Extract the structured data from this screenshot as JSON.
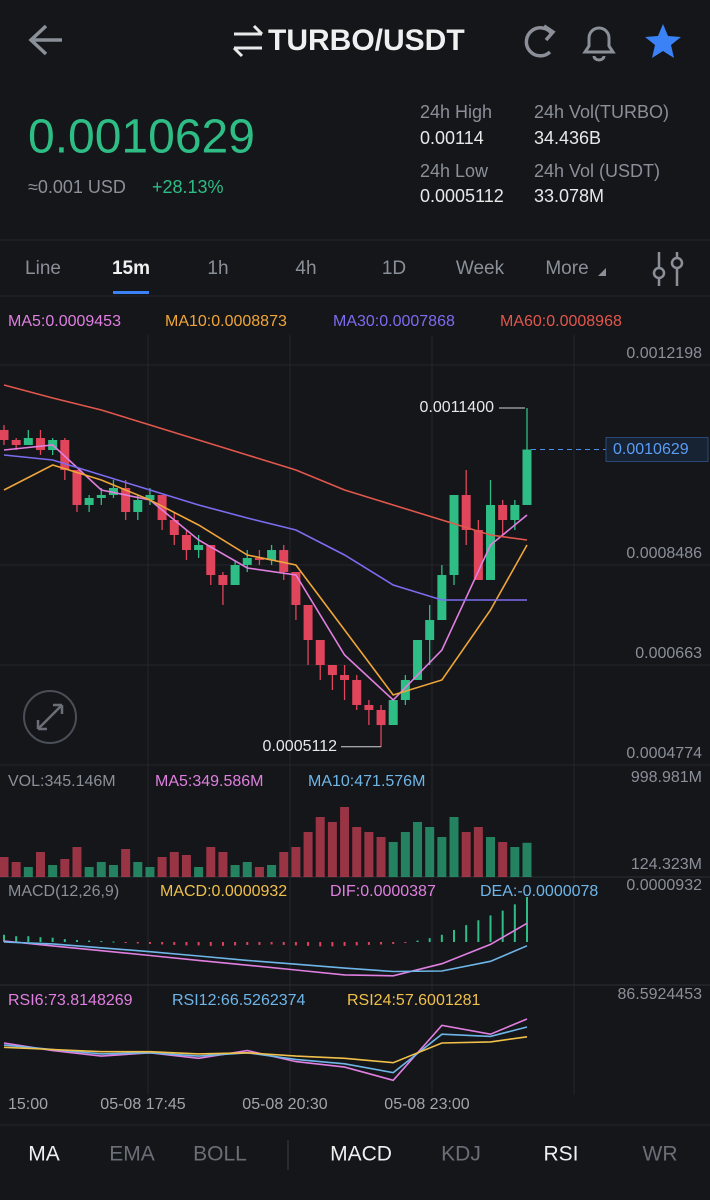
{
  "header": {
    "title": "TURBO/USDT"
  },
  "ticker": {
    "price": "0.0010629",
    "usd": "≈0.001 USD",
    "change": "+28.13%",
    "stats": [
      {
        "label": "24h High",
        "value": "0.00114"
      },
      {
        "label": "24h Vol(TURBO)",
        "value": "34.436B"
      },
      {
        "label": "24h Low",
        "value": "0.0005112"
      },
      {
        "label": "24h Vol (USDT)",
        "value": "33.078M"
      }
    ]
  },
  "timeframes": {
    "items": [
      "Line",
      "15m",
      "1h",
      "4h",
      "1D",
      "Week",
      "More"
    ],
    "active": 1
  },
  "chart_data": [
    {
      "type": "candlestick",
      "ylim": [
        0.0004774,
        0.0012198
      ],
      "yticks": [
        0.0012198,
        0.0008486,
        0.000663,
        0.0004774
      ],
      "grid": true,
      "last_price": 0.0010629,
      "high_label": {
        "value": 0.00114,
        "label": "0.0011400"
      },
      "low_label": 0.0005112,
      "colors": {
        "up": "#2ebd85",
        "down": "#e0455c"
      },
      "ohlc": [
        [
          0.0010992,
          0.0011084,
          0.0010713,
          0.0010806
        ],
        [
          0.0010806,
          0.0010843,
          0.001062,
          0.0010713
        ],
        [
          0.0010713,
          0.0010992,
          0.0010713,
          0.0010843
        ],
        [
          0.0010843,
          0.0010992,
          0.0010528,
          0.001062
        ],
        [
          0.001062,
          0.0010843,
          0.0010528,
          0.0010806
        ],
        [
          0.0010806,
          0.0010843,
          0.0010064,
          0.0010249
        ],
        [
          0.0010249,
          0.0010249,
          0.000947,
          0.00096
        ],
        [
          0.00096,
          0.0009785,
          0.000947,
          0.000973
        ],
        [
          0.000973,
          0.0009915,
          0.00096,
          0.0009785
        ],
        [
          0.0009785,
          0.0010064,
          0.000973,
          0.0009915
        ],
        [
          0.0009915,
          0.0010064,
          0.0009321,
          0.000947
        ],
        [
          0.000947,
          0.0009785,
          0.0009321,
          0.0009692
        ],
        [
          0.0009692,
          0.0009915,
          0.00096,
          0.0009785
        ],
        [
          0.0009785,
          0.0009785,
          0.0009136,
          0.0009321
        ],
        [
          0.0009321,
          0.000947,
          0.0008857,
          0.0009043
        ],
        [
          0.0009043,
          0.0009136,
          0.0008579,
          0.0008764
        ],
        [
          0.0008764,
          0.0009043,
          0.0008616,
          0.0008857
        ],
        [
          0.0008857,
          0.0008857,
          0.0008115,
          0.00083
        ],
        [
          0.00083,
          0.0008356,
          0.0007744,
          0.0008115
        ],
        [
          0.0008115,
          0.0008579,
          0.0008115,
          0.0008486
        ],
        [
          0.0008486,
          0.0008764,
          0.0008356,
          0.0008616
        ],
        [
          0.0008616,
          0.0008764,
          0.0008486,
          0.0008579
        ],
        [
          0.0008579,
          0.0008857,
          0.0008486,
          0.0008764
        ],
        [
          0.0008764,
          0.0008857,
          0.0008208,
          0.0008356
        ],
        [
          0.0008356,
          0.0008356,
          0.0007465,
          0.0007744
        ],
        [
          0.0007744,
          0.0007744,
          0.000663,
          0.0007094
        ],
        [
          0.0007094,
          0.0007094,
          0.0006352,
          0.000663
        ],
        [
          0.000663,
          0.000663,
          0.0006166,
          0.0006444
        ],
        [
          0.0006444,
          0.000663,
          0.000598,
          0.0006352
        ],
        [
          0.0006352,
          0.0006444,
          0.0005795,
          0.0005888
        ],
        [
          0.0005888,
          0.000598,
          0.0005516,
          0.0005795
        ],
        [
          0.0005795,
          0.0005888,
          0.0005112,
          0.0005516
        ],
        [
          0.0005516,
          0.000598,
          0.0005516,
          0.000598
        ],
        [
          0.000598,
          0.0006444,
          0.0005888,
          0.0006352
        ],
        [
          0.0006352,
          0.0007094,
          0.0006352,
          0.0007094
        ],
        [
          0.0007094,
          0.0007744,
          0.000663,
          0.0007465
        ],
        [
          0.0007465,
          0.0008486,
          0.0007465,
          0.00083
        ],
        [
          0.00083,
          0.0009785,
          0.0008115,
          0.0009785
        ],
        [
          0.0009785,
          0.0010249,
          0.0008857,
          0.0009136
        ],
        [
          0.0009136,
          0.0009321,
          0.0008208,
          0.0008208
        ],
        [
          0.0008208,
          0.0010064,
          0.0008208,
          0.00096
        ],
        [
          0.00096,
          0.0009692,
          0.0009043,
          0.0009321
        ],
        [
          0.0009321,
          0.0009692,
          0.0009136,
          0.00096
        ],
        [
          0.00096,
          0.00114,
          0.00096,
          0.0010629
        ]
      ],
      "series": [
        {
          "name": "MA5:0.0009453",
          "color": "#e07fe0",
          "x": [
            0,
            4,
            8,
            12,
            16,
            20,
            24,
            28,
            32,
            36,
            40,
            43
          ],
          "values": [
            0.001062,
            0.0010713,
            0.0009878,
            0.0009692,
            0.000895,
            0.000843,
            0.00083,
            0.0006816,
            0.000598,
            0.0006908,
            0.0008857,
            0.0009414
          ]
        },
        {
          "name": "MA10:0.0008873",
          "color": "#f0a53a",
          "x": [
            0,
            4,
            8,
            12,
            16,
            20,
            24,
            28,
            32,
            36,
            40,
            43
          ],
          "values": [
            0.0009878,
            0.0010342,
            0.0010064,
            0.0009692,
            0.0009228,
            0.0008672,
            0.0008486,
            0.000728,
            0.0006073,
            0.0006352,
            0.0007651,
            0.0008857
          ]
        },
        {
          "name": "MA30:0.0007868",
          "color": "#7b6cf0",
          "x": [
            0,
            4,
            8,
            12,
            16,
            20,
            24,
            28,
            32,
            36,
            40,
            43
          ],
          "values": [
            0.0010528,
            0.0010435,
            0.0010156,
            0.0009878,
            0.00096,
            0.0009358,
            0.0009136,
            0.0008672,
            0.0008115,
            0.0007836,
            0.0007836,
            0.0007836
          ]
        },
        {
          "name": "MA60:0.0008968",
          "color": "#e2574c",
          "x": [
            0,
            4,
            8,
            12,
            16,
            20,
            24,
            28,
            32,
            36,
            40,
            43
          ],
          "values": [
            0.0011827,
            0.0011586,
            0.0011363,
            0.0011084,
            0.0010806,
            0.0010528,
            0.0010249,
            0.0009878,
            0.00096,
            0.0009321,
            0.0009043,
            0.000895
          ]
        }
      ]
    },
    {
      "type": "volume",
      "legend": [
        {
          "text": "VOL:345.146M",
          "color": "#8a8f98"
        },
        {
          "text": "MA5:349.586M",
          "color": "#e07fe0"
        },
        {
          "text": "MA10:471.576M",
          "color": "#6fb6e8"
        }
      ],
      "ylim": [
        0,
        998.981
      ],
      "yticks": [
        {
          "value": 998.981,
          "label": "998.981M"
        },
        {
          "value": 124.323,
          "label": "124.323M"
        }
      ],
      "values": [
        201.8,
        151.4,
        100.9,
        252.2,
        121.1,
        181.6,
        302.7,
        100.9,
        151.4,
        121.1,
        282.5,
        151.4,
        100.9,
        201.8,
        252.2,
        222,
        100.9,
        302.7,
        252.2,
        121.1,
        151.4,
        100.9,
        121.1,
        252.2,
        302.7,
        454.1,
        605.4,
        555,
        706.3,
        504.5,
        454.1,
        403.6,
        353.2,
        454.1,
        555,
        504.5,
        403.6,
        605.4,
        454.1,
        504.5,
        403.6,
        353.2,
        302.7,
        345.146
      ]
    },
    {
      "type": "macd",
      "title": "MACD(12,26,9)",
      "histogram_label": {
        "text": "MACD:0.0000932",
        "color": "#f0c04a"
      },
      "ylim": [
        -8.9e-05,
        9.32e-05
      ],
      "yticks": [
        9.32e-05
      ],
      "histogram": [
        1.5e-05,
        1.2e-05,
        1.2e-05,
        1e-05,
        9e-06,
        6e-06,
        4e-06,
        3e-06,
        2e-06,
        1e-06,
        -2e-06,
        -3e-06,
        -4e-06,
        -5e-06,
        -6e-06,
        -7e-06,
        -7e-06,
        -8e-06,
        -8e-06,
        -7e-06,
        -6e-06,
        -6e-06,
        -5e-06,
        -6e-06,
        -7e-06,
        -8e-06,
        -9e-06,
        -9e-06,
        -8e-06,
        -7e-06,
        -6e-06,
        -5e-06,
        -4e-06,
        -2e-06,
        3e-06,
        8e-06,
        1.5e-05,
        2.5e-05,
        3.5e-05,
        4.5e-05,
        5.5e-05,
        6.5e-05,
        7.8e-05,
        9.32e-05
      ],
      "series": [
        {
          "name": "DIF:0.0000387",
          "color": "#e07fe0",
          "x": [
            0,
            4,
            8,
            12,
            16,
            20,
            24,
            28,
            32,
            36,
            40,
            43
          ],
          "values": [
            2e-06,
            -8e-06,
            -1.8e-05,
            -2.8e-05,
            -3.8e-05,
            -4.8e-05,
            -5.8e-05,
            -6.8e-05,
            -7e-05,
            -4.5e-05,
            -5e-06,
            3.87e-05
          ]
        },
        {
          "name": "DEA:-0.0000078",
          "color": "#6fb6e8",
          "x": [
            0,
            4,
            8,
            12,
            16,
            20,
            24,
            28,
            32,
            36,
            40,
            43
          ],
          "values": [
            0,
            -4e-06,
            -1.2e-05,
            -2e-05,
            -2.9e-05,
            -3.8e-05,
            -4.6e-05,
            -5.4e-05,
            -6.1e-05,
            -6e-05,
            -4e-05,
            -7.8e-06
          ]
        }
      ]
    },
    {
      "type": "line",
      "ylim": [
        0,
        86.5924453
      ],
      "yticks": [
        86.5924453
      ],
      "time_labels": [
        "15:00",
        "05-08 17:45",
        "05-08 20:30",
        "05-08 23:00"
      ],
      "series": [
        {
          "name": "RSI6:73.8148269",
          "color": "#e07fe0",
          "x": [
            0,
            4,
            8,
            12,
            16,
            20,
            24,
            28,
            32,
            36,
            40,
            43
          ],
          "values": [
            52,
            45,
            40,
            43,
            38,
            45,
            35,
            30,
            18,
            68,
            60,
            73.8148269
          ]
        },
        {
          "name": "RSI12:66.5262374",
          "color": "#6fb6e8",
          "x": [
            0,
            4,
            8,
            12,
            16,
            20,
            24,
            28,
            32,
            36,
            40,
            43
          ],
          "values": [
            50,
            46,
            42,
            43,
            40,
            43,
            37,
            33,
            25,
            60,
            58,
            66.5262374
          ]
        },
        {
          "name": "RSI24:57.6001281",
          "color": "#f0c04a",
          "x": [
            0,
            4,
            8,
            12,
            16,
            20,
            24,
            28,
            32,
            36,
            40,
            43
          ],
          "values": [
            48,
            46,
            44,
            44,
            42,
            43,
            40,
            38,
            34,
            52,
            53,
            57.6001281
          ]
        }
      ]
    }
  ],
  "bottom_tabs": {
    "left": [
      {
        "label": "MA",
        "active": true
      },
      {
        "label": "EMA",
        "active": false
      },
      {
        "label": "BOLL",
        "active": false
      }
    ],
    "right": [
      {
        "label": "MACD",
        "active": true
      },
      {
        "label": "KDJ",
        "active": false
      },
      {
        "label": "RSI",
        "active": true
      },
      {
        "label": "WR",
        "active": false
      }
    ]
  }
}
